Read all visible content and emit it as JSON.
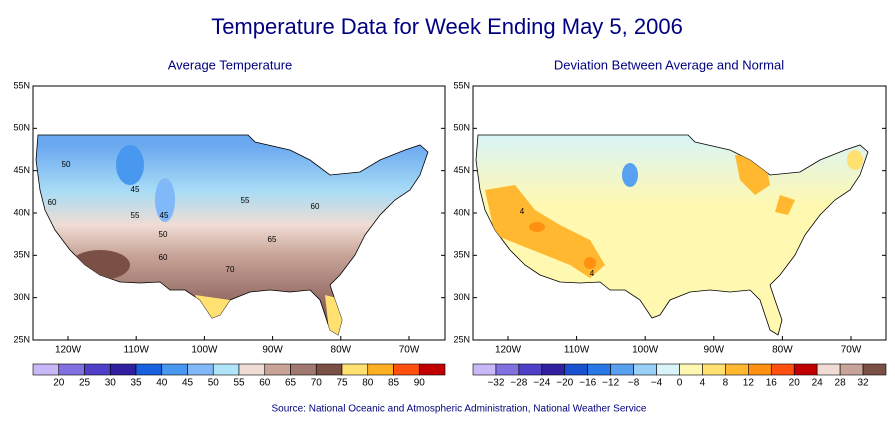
{
  "title": "Temperature Data for Week Ending May 5, 2006",
  "maps": [
    {
      "title": "Average Temperature",
      "lat_ticks": [
        "55N",
        "50N",
        "45N",
        "40N",
        "35N",
        "30N",
        "25N"
      ],
      "lon_ticks": [
        "120W",
        "110W",
        "100W",
        "90W",
        "80W",
        "70W"
      ],
      "legend_labels": [
        "20",
        "25",
        "30",
        "35",
        "40",
        "45",
        "50",
        "55",
        "60",
        "65",
        "70",
        "75",
        "80",
        "85",
        "90"
      ],
      "legend_colors": [
        "#c8b8f8",
        "#8070e0",
        "#5040c8",
        "#3020a0",
        "#1860e0",
        "#4898f0",
        "#80b8f8",
        "#b0e4f8",
        "#f0dcd4",
        "#c8a498",
        "#a07870",
        "#7a5046",
        "#ffe070",
        "#ffb020",
        "#ff5010",
        "#c00000"
      ],
      "contour_labels": [
        "50",
        "45",
        "55",
        "45",
        "50",
        "60",
        "55",
        "60",
        "65",
        "60",
        "70"
      ]
    },
    {
      "title": "Deviation Between Average and Normal",
      "lat_ticks": [
        "55N",
        "50N",
        "45N",
        "40N",
        "35N",
        "30N",
        "25N"
      ],
      "lon_ticks": [
        "120W",
        "110W",
        "100W",
        "90W",
        "80W",
        "70W"
      ],
      "legend_labels": [
        "−32",
        "−28",
        "−24",
        "−20",
        "−16",
        "−12",
        "−8",
        "−4",
        "0",
        "4",
        "8",
        "12",
        "16",
        "20",
        "24",
        "28",
        "32"
      ],
      "legend_colors": [
        "#c8b8f8",
        "#8070e0",
        "#5040c8",
        "#3020a0",
        "#1850d0",
        "#2878e8",
        "#58a0f0",
        "#98d0f8",
        "#d8f4f8",
        "#fff8b0",
        "#ffe070",
        "#ffb830",
        "#ff9010",
        "#ff5010",
        "#c00000",
        "#f0dcd4",
        "#c8a498",
        "#7a5046"
      ],
      "contour_labels": [
        "4",
        "4"
      ]
    }
  ],
  "source": "Source:  National Oceanic and Atmospheric Administration, National Weather Service"
}
